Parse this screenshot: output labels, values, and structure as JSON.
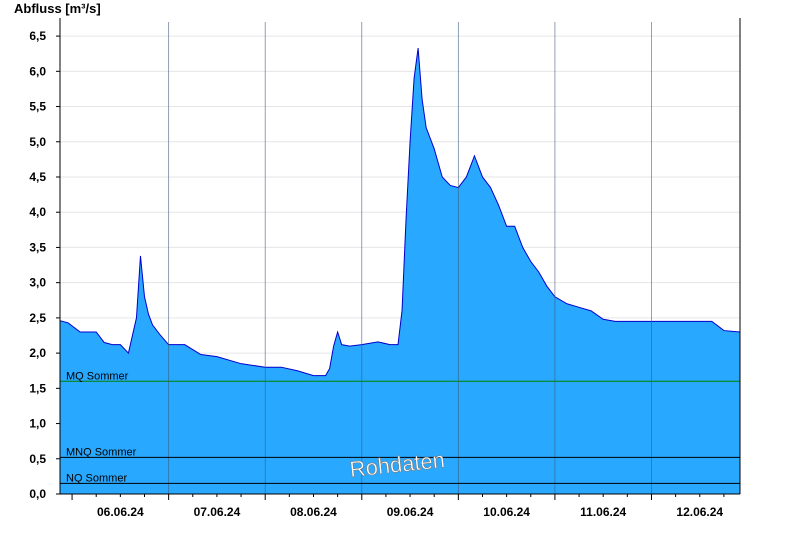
{
  "chart_data": {
    "type": "area",
    "ylabel": "Abfluss [m³/s]",
    "ylim": [
      0,
      6.7
    ],
    "y_ticks": [
      "0,0",
      "0,5",
      "1,0",
      "1,5",
      "2,0",
      "2,5",
      "3,0",
      "3,5",
      "4,0",
      "4,5",
      "5,0",
      "5,5",
      "6,0",
      "6,5"
    ],
    "y_tick_values": [
      0,
      0.5,
      1,
      1.5,
      2,
      2.5,
      3,
      3.5,
      4,
      4.5,
      5,
      5.5,
      6,
      6.5
    ],
    "xlim": [
      "05.06.24 21:00",
      "12.06.24 22:00"
    ],
    "x_tick_labels": [
      "06.06.24",
      "07.06.24",
      "08.06.24",
      "09.06.24",
      "10.06.24",
      "11.06.24",
      "12.06.24"
    ],
    "grid": true,
    "series": [
      {
        "color": "#29a8ff",
        "line_color": "#0000cc",
        "x": [
          "05.06.24 21:00",
          "05.06.24 23:00",
          "06.06.24 02:00",
          "06.06.24 06:00",
          "06.06.24 08:00",
          "06.06.24 10:00",
          "06.06.24 12:00",
          "06.06.24 14:00",
          "06.06.24 16:00",
          "06.06.24 17:00",
          "06.06.24 18:00",
          "06.06.24 19:00",
          "06.06.24 20:00",
          "06.06.24 22:00",
          "07.06.24 00:00",
          "07.06.24 04:00",
          "07.06.24 08:00",
          "07.06.24 12:00",
          "07.06.24 18:00",
          "08.06.24 00:00",
          "08.06.24 04:00",
          "08.06.24 08:00",
          "08.06.24 12:00",
          "08.06.24 15:00",
          "08.06.24 16:00",
          "08.06.24 17:00",
          "08.06.24 18:00",
          "08.06.24 19:00",
          "08.06.24 21:00",
          "09.06.24 00:00",
          "09.06.24 04:00",
          "09.06.24 07:00",
          "09.06.24 08:00",
          "09.06.24 09:00",
          "09.06.24 10:00",
          "09.06.24 11:00",
          "09.06.24 12:00",
          "09.06.24 13:00",
          "09.06.24 14:00",
          "09.06.24 15:00",
          "09.06.24 16:00",
          "09.06.24 18:00",
          "09.06.24 20:00",
          "09.06.24 22:00",
          "10.06.24 00:00",
          "10.06.24 02:00",
          "10.06.24 04:00",
          "10.06.24 06:00",
          "10.06.24 08:00",
          "10.06.24 10:00",
          "10.06.24 12:00",
          "10.06.24 14:00",
          "10.06.24 16:00",
          "10.06.24 18:00",
          "10.06.24 20:00",
          "10.06.24 22:00",
          "11.06.24 00:00",
          "11.06.24 03:00",
          "11.06.24 06:00",
          "11.06.24 09:00",
          "11.06.24 12:00",
          "11.06.24 15:00",
          "11.06.24 18:00",
          "11.06.24 21:00",
          "12.06.24 00:00",
          "12.06.24 03:00",
          "12.06.24 06:00",
          "12.06.24 09:00",
          "12.06.24 12:00",
          "12.06.24 15:00",
          "12.06.24 18:00",
          "12.06.24 22:00"
        ],
        "y": [
          2.46,
          2.43,
          2.3,
          2.3,
          2.15,
          2.12,
          2.12,
          2.0,
          2.5,
          3.38,
          2.8,
          2.55,
          2.4,
          2.25,
          2.12,
          2.12,
          1.98,
          1.95,
          1.85,
          1.8,
          1.8,
          1.75,
          1.68,
          1.68,
          1.78,
          2.1,
          2.3,
          2.12,
          2.1,
          2.12,
          2.16,
          2.12,
          2.12,
          2.12,
          2.6,
          3.9,
          5.0,
          5.9,
          6.33,
          5.6,
          5.2,
          4.9,
          4.5,
          4.38,
          4.35,
          4.5,
          4.8,
          4.5,
          4.35,
          4.1,
          3.8,
          3.8,
          3.5,
          3.3,
          3.15,
          2.95,
          2.8,
          2.7,
          2.65,
          2.6,
          2.48,
          2.45,
          2.45,
          2.45,
          2.45,
          2.45,
          2.45,
          2.45,
          2.45,
          2.45,
          2.32,
          2.3
        ]
      }
    ],
    "reference_lines": [
      {
        "label": "MQ Sommer",
        "value": 1.6,
        "color": "#008000"
      },
      {
        "label": "MNQ Sommer",
        "value": 0.52,
        "color": "#000000"
      },
      {
        "label": "NQ Sommer",
        "value": 0.15,
        "color": "#000000"
      }
    ],
    "watermark": "Rohdaten"
  }
}
